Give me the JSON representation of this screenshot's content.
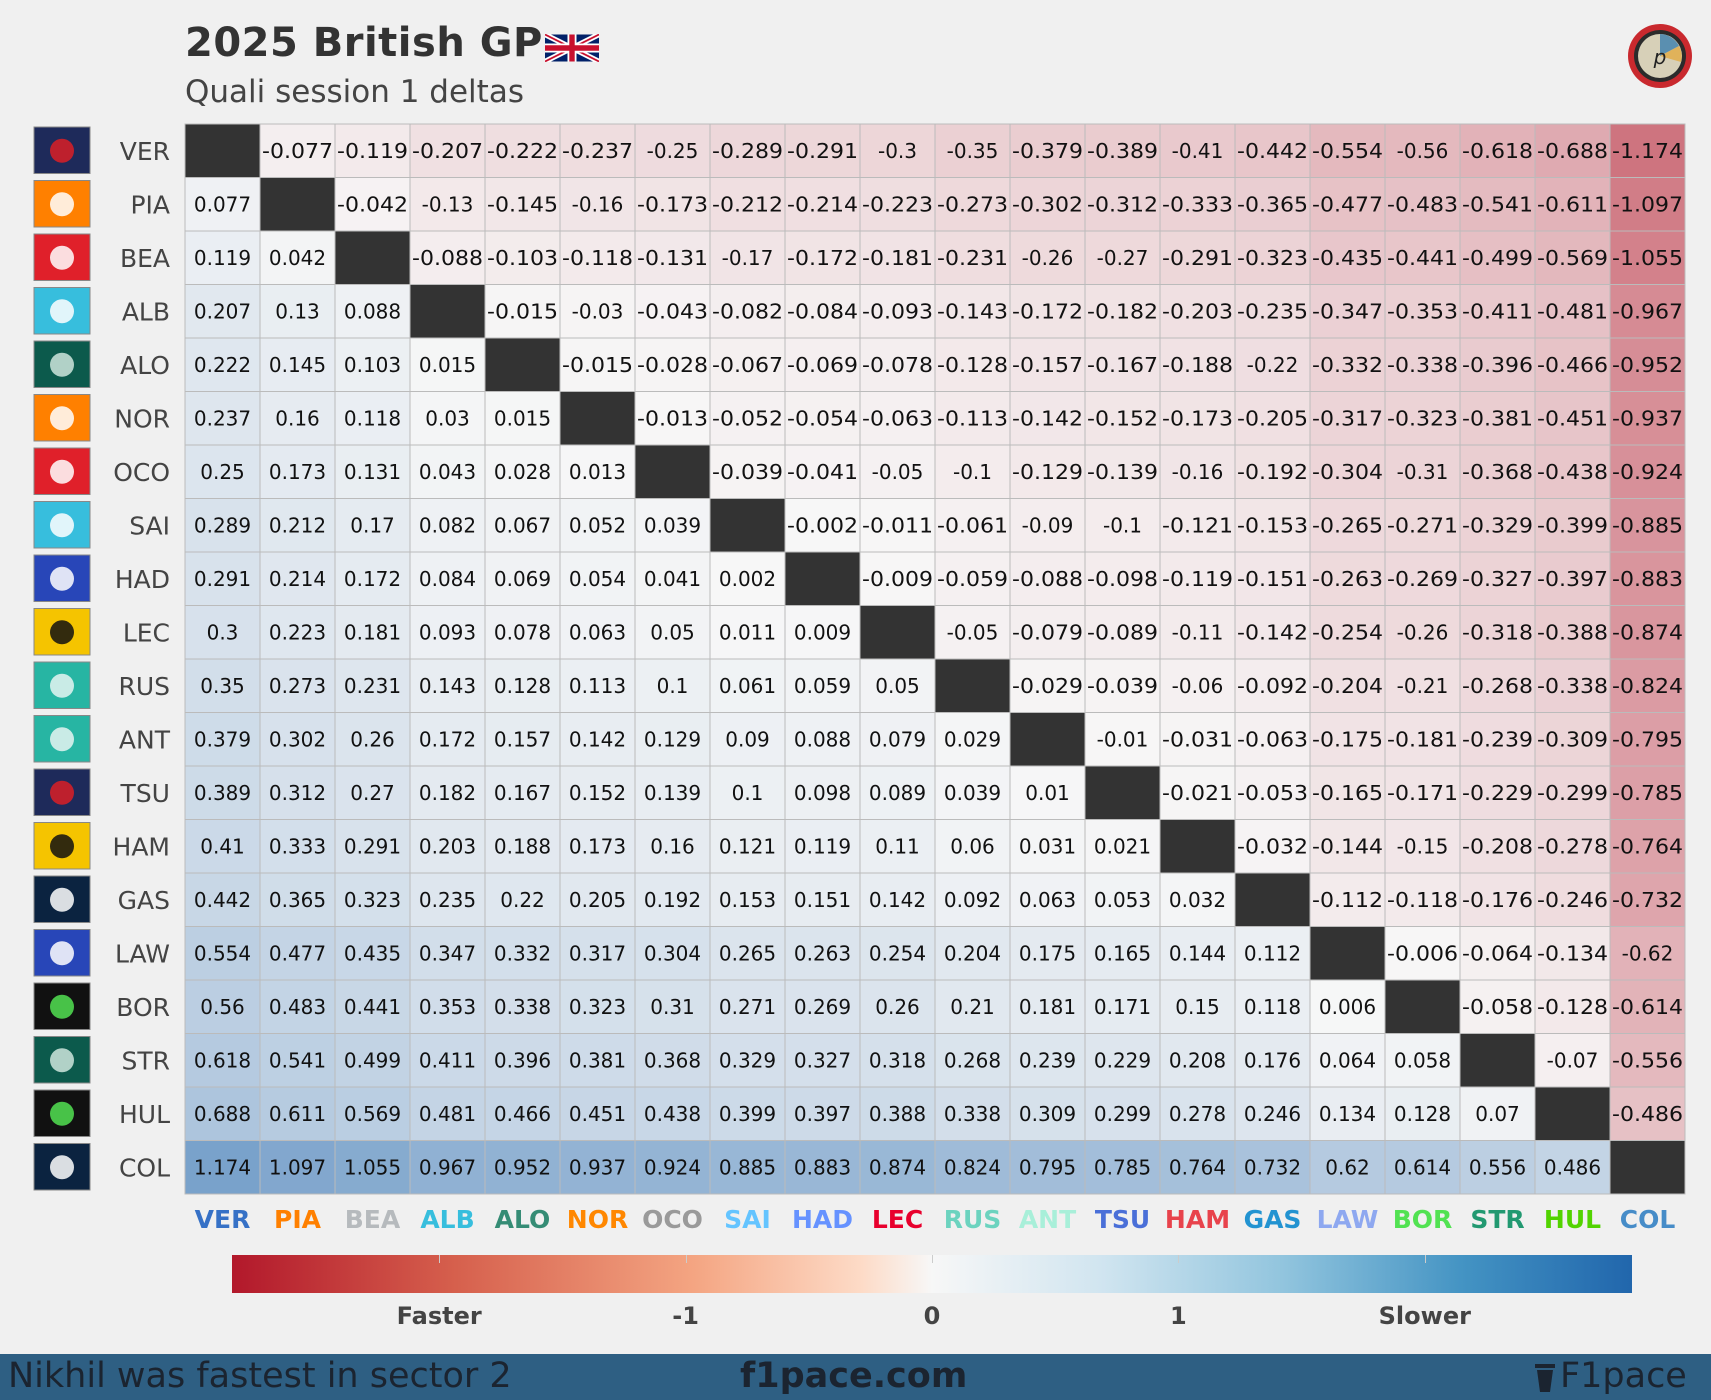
{
  "header": {
    "title": "2025 British GP",
    "subtitle": "Quali session 1 deltas",
    "flag_icon": "uk-flag-icon",
    "logo_icon": "pace-logo-icon"
  },
  "chart_data": {
    "type": "heatmap",
    "drivers": [
      "VER",
      "PIA",
      "BEA",
      "ALB",
      "ALO",
      "NOR",
      "OCO",
      "SAI",
      "HAD",
      "LEC",
      "RUS",
      "ANT",
      "TSU",
      "HAM",
      "GAS",
      "LAW",
      "BOR",
      "STR",
      "HUL",
      "COL"
    ],
    "teams": [
      "red-bull",
      "mclaren",
      "haas",
      "williams",
      "aston-martin",
      "mclaren",
      "haas",
      "williams",
      "racing-bulls",
      "ferrari",
      "mercedes",
      "mercedes",
      "red-bull",
      "ferrari",
      "alpine",
      "racing-bulls",
      "sauber",
      "aston-martin",
      "sauber",
      "alpine"
    ],
    "driver_colors": [
      "#3671C6",
      "#FF8000",
      "#B6BABD",
      "#37BEDD",
      "#358C75",
      "#FF8700",
      "#9A9A9A",
      "#64C4FF",
      "#6692FF",
      "#E8002D",
      "#6CD3BF",
      "#A8EFD9",
      "#4A6FD8",
      "#E8434C",
      "#2293D1",
      "#8EA8F0",
      "#52E252",
      "#229971",
      "#52D300",
      "#468CC8"
    ],
    "times": [
      0,
      0.077,
      0.119,
      0.207,
      0.222,
      0.237,
      0.25,
      0.289,
      0.291,
      0.3,
      0.35,
      0.379,
      0.389,
      0.41,
      0.442,
      0.554,
      0.56,
      0.618,
      0.688,
      1.174
    ],
    "cell_rule": "value[row][col] = times[row] - times[col]; diagonal blank",
    "colorbar": {
      "ticks": [
        "Faster",
        "-1",
        "0",
        "1",
        "Slower"
      ],
      "range": [
        -2,
        2
      ],
      "colors": [
        "#b2182b",
        "#f7f7f7",
        "#2166ac"
      ]
    }
  },
  "footer": {
    "left": "Nikhil was fastest in sector 2",
    "middle": "f1pace.com",
    "right": "F1pace"
  }
}
